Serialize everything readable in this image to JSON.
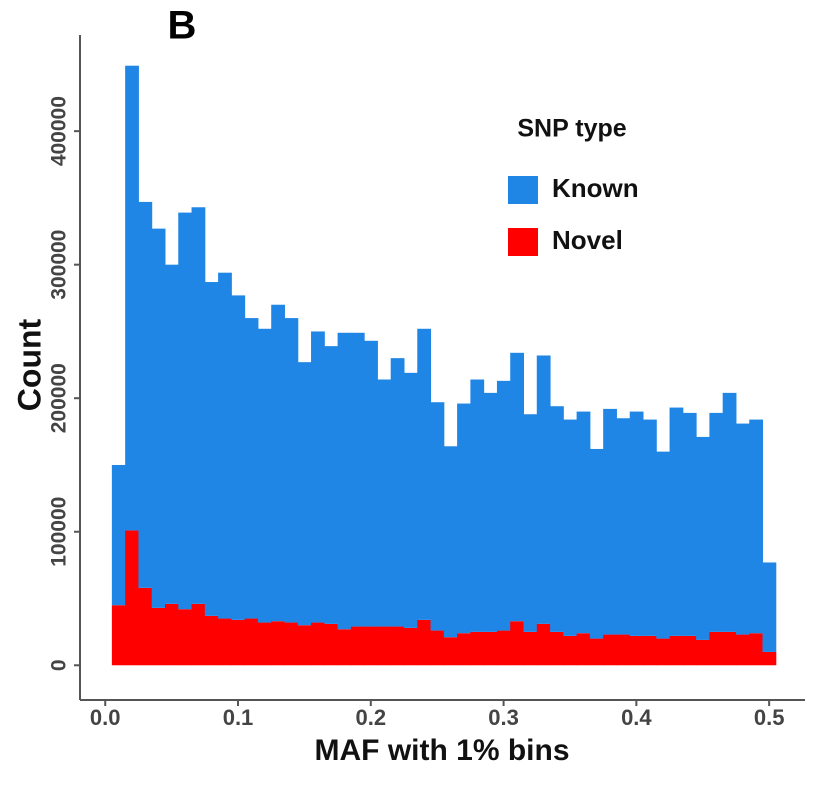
{
  "chart_data": {
    "type": "histogram",
    "title": "B",
    "x_label": "MAF with 1% bins",
    "y_label": "Count",
    "legend_title": "SNP type",
    "legend_position": "top-right",
    "stacked": true,
    "grid": false,
    "bins": [
      0.005,
      0.015,
      0.025,
      0.035,
      0.045,
      0.055,
      0.065,
      0.075,
      0.085,
      0.095,
      0.105,
      0.115,
      0.125,
      0.135,
      0.145,
      0.155,
      0.165,
      0.175,
      0.185,
      0.195,
      0.205,
      0.215,
      0.225,
      0.235,
      0.245,
      0.255,
      0.265,
      0.275,
      0.285,
      0.295,
      0.305,
      0.315,
      0.325,
      0.335,
      0.345,
      0.355,
      0.365,
      0.375,
      0.385,
      0.395,
      0.405,
      0.415,
      0.425,
      0.435,
      0.445,
      0.455,
      0.465,
      0.475,
      0.485,
      0.495,
      0.505
    ],
    "series": [
      {
        "name": "Known",
        "color": "#1f86e6",
        "values": [
          105000,
          348000,
          289000,
          284000,
          254000,
          297000,
          297000,
          250000,
          259000,
          243000,
          225000,
          220000,
          237000,
          228000,
          197000,
          218000,
          208000,
          222000,
          220000,
          214000,
          185000,
          201000,
          191000,
          218000,
          171000,
          143000,
          172000,
          189000,
          179000,
          187000,
          201000,
          163000,
          201000,
          169000,
          162000,
          166000,
          142000,
          169000,
          162000,
          168000,
          162000,
          140000,
          171000,
          167000,
          152000,
          164000,
          179000,
          158000,
          160000,
          67000
        ]
      },
      {
        "name": "Novel",
        "color": "#ff0000",
        "values": [
          45000,
          101000,
          58000,
          43000,
          46000,
          42000,
          46000,
          37000,
          35000,
          34000,
          35000,
          32000,
          33000,
          32000,
          30000,
          32000,
          31000,
          27000,
          29000,
          29000,
          29000,
          29000,
          28000,
          34000,
          26000,
          21000,
          24000,
          25000,
          25000,
          26000,
          33000,
          25000,
          31000,
          25000,
          22000,
          24000,
          20000,
          23000,
          23000,
          22000,
          22000,
          20000,
          22000,
          22000,
          19000,
          25000,
          25000,
          23000,
          24000,
          10000
        ]
      }
    ],
    "xlim": [
      -0.019,
      0.527
    ],
    "ylim": [
      -26000,
      472000
    ],
    "xticks": [
      {
        "value": 0,
        "label": "0.0"
      },
      0.1,
      0.2,
      0.3,
      0.4,
      0.5
    ],
    "yticks": [
      0,
      100000,
      200000,
      300000,
      400000
    ]
  }
}
